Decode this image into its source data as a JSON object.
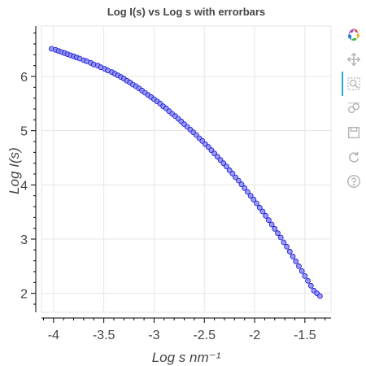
{
  "chart_data": {
    "type": "scatter",
    "title": "Log I(s) vs Log s with errorbars",
    "xlabel": "Log s nm⁻¹",
    "ylabel": "Log I(s)",
    "xlim": [
      -4.12,
      -1.24
    ],
    "ylim": [
      1.65,
      6.93
    ],
    "x_ticks": [
      -4,
      -3.5,
      -3,
      -2.5,
      -2,
      -1.5
    ],
    "x_tick_labels": [
      "-4",
      "-3.5",
      "-3",
      "-2.5",
      "-2",
      "-1.5"
    ],
    "y_ticks": [
      2,
      3,
      4,
      5,
      6
    ],
    "y_tick_labels": [
      "2",
      "3",
      "4",
      "5",
      "6"
    ],
    "grid": true,
    "marker_fill": "#8888ee",
    "marker_stroke": "#1a1adb",
    "series": [
      {
        "values": [
          [
            -4.02,
            6.51
          ],
          [
            -3.98,
            6.49
          ],
          [
            -3.95,
            6.47
          ],
          [
            -3.92,
            6.45
          ],
          [
            -3.89,
            6.43
          ],
          [
            -3.86,
            6.41
          ],
          [
            -3.83,
            6.39
          ],
          [
            -3.8,
            6.37
          ],
          [
            -3.77,
            6.35
          ],
          [
            -3.74,
            6.33
          ],
          [
            -3.7,
            6.3
          ],
          [
            -3.67,
            6.28
          ],
          [
            -3.63,
            6.25
          ],
          [
            -3.6,
            6.22
          ],
          [
            -3.56,
            6.2
          ],
          [
            -3.53,
            6.17
          ],
          [
            -3.49,
            6.14
          ],
          [
            -3.46,
            6.11
          ],
          [
            -3.42,
            6.08
          ],
          [
            -3.39,
            6.05
          ],
          [
            -3.36,
            6.02
          ],
          [
            -3.33,
            5.99
          ],
          [
            -3.3,
            5.96
          ],
          [
            -3.27,
            5.92
          ],
          [
            -3.24,
            5.89
          ],
          [
            -3.21,
            5.85
          ],
          [
            -3.18,
            5.82
          ],
          [
            -3.15,
            5.78
          ],
          [
            -3.12,
            5.74
          ],
          [
            -3.09,
            5.7
          ],
          [
            -3.06,
            5.66
          ],
          [
            -3.03,
            5.62
          ],
          [
            -3.0,
            5.58
          ],
          [
            -2.97,
            5.54
          ],
          [
            -2.94,
            5.5
          ],
          [
            -2.91,
            5.45
          ],
          [
            -2.88,
            5.41
          ],
          [
            -2.85,
            5.36
          ],
          [
            -2.82,
            5.31
          ],
          [
            -2.79,
            5.27
          ],
          [
            -2.76,
            5.22
          ],
          [
            -2.73,
            5.17
          ],
          [
            -2.7,
            5.12
          ],
          [
            -2.67,
            5.07
          ],
          [
            -2.64,
            5.02
          ],
          [
            -2.61,
            4.97
          ],
          [
            -2.58,
            4.92
          ],
          [
            -2.55,
            4.86
          ],
          [
            -2.52,
            4.81
          ],
          [
            -2.49,
            4.75
          ],
          [
            -2.46,
            4.7
          ],
          [
            -2.43,
            4.64
          ],
          [
            -2.4,
            4.58
          ],
          [
            -2.37,
            4.52
          ],
          [
            -2.34,
            4.46
          ],
          [
            -2.31,
            4.4
          ],
          [
            -2.28,
            4.34
          ],
          [
            -2.25,
            4.27
          ],
          [
            -2.22,
            4.21
          ],
          [
            -2.19,
            4.14
          ],
          [
            -2.16,
            4.08
          ],
          [
            -2.13,
            4.01
          ],
          [
            -2.1,
            3.94
          ],
          [
            -2.07,
            3.87
          ],
          [
            -2.04,
            3.8
          ],
          [
            -2.01,
            3.73
          ],
          [
            -1.98,
            3.66
          ],
          [
            -1.95,
            3.58
          ],
          [
            -1.92,
            3.51
          ],
          [
            -1.89,
            3.43
          ],
          [
            -1.86,
            3.35
          ],
          [
            -1.83,
            3.27
          ],
          [
            -1.8,
            3.19
          ],
          [
            -1.77,
            3.11
          ],
          [
            -1.74,
            3.03
          ],
          [
            -1.71,
            2.94
          ],
          [
            -1.68,
            2.86
          ],
          [
            -1.65,
            2.77
          ],
          [
            -1.62,
            2.68
          ],
          [
            -1.59,
            2.59
          ],
          [
            -1.56,
            2.5
          ],
          [
            -1.53,
            2.41
          ],
          [
            -1.5,
            2.32
          ],
          [
            -1.47,
            2.23
          ],
          [
            -1.44,
            2.14
          ],
          [
            -1.41,
            2.05
          ],
          [
            -1.38,
            2.0
          ],
          [
            -1.35,
            1.95
          ]
        ]
      }
    ]
  },
  "toolbar": {
    "tools": [
      "bokeh-logo-icon",
      "pan-icon",
      "box-zoom-icon",
      "wheel-zoom-icon",
      "save-icon",
      "reset-icon",
      "help-icon"
    ],
    "active_color": "#26aae1",
    "icon_color": "#b3b3b3"
  }
}
